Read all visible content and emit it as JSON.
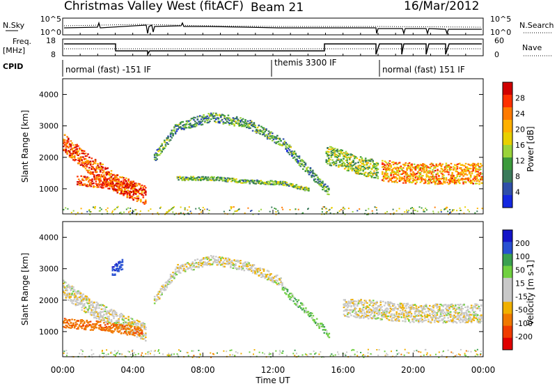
{
  "header": {
    "station": "Christmas Valley West (fitACF)",
    "beam": "Beam 21",
    "date": "16/Mar/2012"
  },
  "panels": {
    "nsky": {
      "label": "N.Sky",
      "ticks": [
        "10^5",
        "10^0"
      ],
      "right_ticks": [
        "10^5",
        "10^0"
      ],
      "right_label": "N.Search"
    },
    "freq": {
      "label_1": "Freq.",
      "label_2": "[MHz]",
      "ticks": [
        "18",
        "8"
      ],
      "right_ticks": [
        "60",
        "0"
      ],
      "right_label": "Nave"
    },
    "cpid": {
      "label": "CPID",
      "segments": [
        "normal (fast) -151 IF",
        "themis 3300 IF",
        "normal (fast) 151 IF"
      ]
    }
  },
  "colorbars": {
    "power": {
      "label": "Power [dB]",
      "ticks": [
        "28",
        "24",
        "20",
        "16",
        "12",
        "8",
        "4"
      ],
      "colors": [
        "#d00000",
        "#ff3000",
        "#ff7a00",
        "#ffb000",
        "#e8d000",
        "#9ad33a",
        "#3c9a3c",
        "#3a7a5a",
        "#2f4fa8",
        "#1428e0"
      ]
    },
    "velocity": {
      "label": "Velocity [m s-1]",
      "ticks": [
        "200",
        "100",
        "50",
        "15",
        "-15",
        "-50",
        "-100",
        "-200"
      ],
      "colors": [
        "#1414c8",
        "#2850d2",
        "#3aa050",
        "#70d040",
        "#c8c8c8",
        "#c8c8c8",
        "#f0b000",
        "#f07800",
        "#f03c00",
        "#e00000"
      ]
    }
  },
  "chart_data": [
    {
      "type": "heatmap",
      "name": "power",
      "xlabel": "",
      "ylabel": "Slant Range [km]",
      "x_ticks": [
        "00:00",
        "04:00",
        "08:00",
        "12:00",
        "16:00",
        "20:00",
        "00:00"
      ],
      "y_ticks": [
        "4000",
        "3000",
        "2000",
        "1000"
      ],
      "xlim": [
        0,
        24
      ],
      "ylim": [
        200,
        4500
      ],
      "echo_bands": [
        {
          "t": [
            0.0,
            1.5,
            3.0,
            4.7
          ],
          "r": [
            2500,
            1800,
            1200,
            800
          ],
          "w": 500,
          "value": 24
        },
        {
          "t": [
            0.8,
            2.5,
            4.2
          ],
          "r": [
            1300,
            1150,
            1000
          ],
          "w": 250,
          "value": 26
        },
        {
          "t": [
            5.2,
            6.5,
            8.5,
            10.5,
            12.5,
            14.0,
            15.2
          ],
          "r": [
            2000,
            3000,
            3300,
            3100,
            2500,
            1600,
            900
          ],
          "w": 250,
          "value": 8
        },
        {
          "t": [
            6.5,
            8.5,
            10.5,
            12.5,
            14.0
          ],
          "r": [
            1350,
            1350,
            1250,
            1200,
            1000
          ],
          "w": 100,
          "value": 10
        },
        {
          "t": [
            15.0,
            16.5,
            18.0
          ],
          "r": [
            2100,
            1850,
            1600
          ],
          "w": 500,
          "value": 12
        },
        {
          "t": [
            18.2,
            20.0,
            23.9
          ],
          "r": [
            1600,
            1500,
            1500
          ],
          "w": 550,
          "value": 20
        }
      ]
    },
    {
      "type": "heatmap",
      "name": "velocity",
      "xlabel": "Time UT",
      "ylabel": "Slant Range [km]",
      "x_ticks": [
        "00:00",
        "04:00",
        "08:00",
        "12:00",
        "16:00",
        "20:00",
        "00:00"
      ],
      "y_ticks": [
        "4000",
        "3000",
        "2000",
        "1000"
      ],
      "xlim": [
        0,
        24
      ],
      "ylim": [
        200,
        4500
      ],
      "echo_bands": [
        {
          "t": [
            0.0,
            1.5,
            3.0,
            4.7
          ],
          "r": [
            2400,
            1800,
            1400,
            1000
          ],
          "w": 450,
          "value": -5
        },
        {
          "t": [
            0.0,
            2.0,
            4.5
          ],
          "r": [
            1300,
            1200,
            1000
          ],
          "w": 250,
          "value": -80
        },
        {
          "t": [
            2.8,
            3.4
          ],
          "r": [
            2900,
            3200
          ],
          "w": 300,
          "value": 150
        },
        {
          "t": [
            5.2,
            6.5,
            8.5,
            10.5,
            12.5
          ],
          "r": [
            2000,
            3000,
            3300,
            3100,
            2600
          ],
          "w": 250,
          "value": -5
        },
        {
          "t": [
            12.5,
            14.0,
            15.2
          ],
          "r": [
            2400,
            1600,
            900
          ],
          "w": 200,
          "value": 40
        },
        {
          "t": [
            16.0,
            18.0,
            20.0,
            23.9
          ],
          "r": [
            1800,
            1700,
            1600,
            1600
          ],
          "w": 500,
          "value": -5
        }
      ]
    }
  ]
}
